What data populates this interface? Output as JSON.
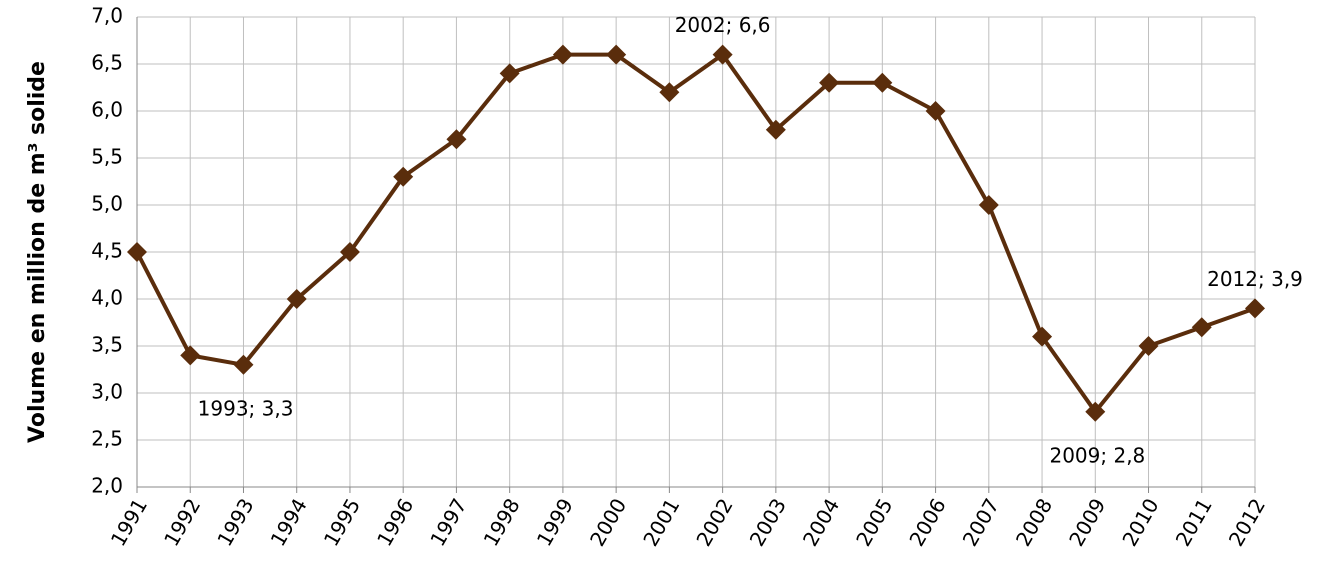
{
  "chart_data": {
    "type": "line",
    "y_label": "Volume en million de m³ solide",
    "categories": [
      "1991",
      "1992",
      "1993",
      "1994",
      "1995",
      "1996",
      "1997",
      "1998",
      "1999",
      "2000",
      "2001",
      "2002",
      "2003",
      "2004",
      "2005",
      "2006",
      "2007",
      "2008",
      "2009",
      "2010",
      "2011",
      "2012"
    ],
    "series": [
      {
        "color": "#5a2d0c",
        "values": [
          4.5,
          3.4,
          3.3,
          4.0,
          4.5,
          5.3,
          5.7,
          6.4,
          6.6,
          6.6,
          6.2,
          6.6,
          5.8,
          6.3,
          6.3,
          6.0,
          5.0,
          3.6,
          2.8,
          3.5,
          3.7,
          3.9
        ],
        "value_labels": [
          null,
          null,
          "1993; 3,3",
          null,
          null,
          null,
          null,
          null,
          null,
          null,
          null,
          "2002; 6,6",
          null,
          null,
          null,
          null,
          null,
          null,
          "2009; 2,8",
          null,
          null,
          "2012; 3,9"
        ]
      }
    ],
    "ylim": [
      2.0,
      7.0
    ],
    "yticks": [
      {
        "value": 2.0,
        "label": "2,0"
      },
      {
        "value": 2.5,
        "label": "2,5"
      },
      {
        "value": 3.0,
        "label": "3,0"
      },
      {
        "value": 3.5,
        "label": "3,5"
      },
      {
        "value": 4.0,
        "label": "4,0"
      },
      {
        "value": 4.5,
        "label": "4,5"
      },
      {
        "value": 5.0,
        "label": "5,0"
      },
      {
        "value": 5.5,
        "label": "5,5"
      },
      {
        "value": 6.0,
        "label": "6,0"
      },
      {
        "value": 6.5,
        "label": "6,5"
      },
      {
        "value": 7.0,
        "label": "7,0"
      }
    ],
    "grid": true
  }
}
